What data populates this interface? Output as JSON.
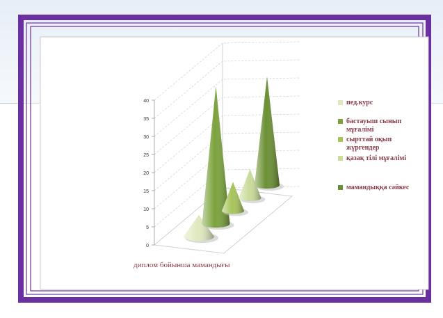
{
  "chart_data": {
    "type": "bar",
    "style": "3d-cone",
    "xlabel": "диплом бойынша мамандығы",
    "ylabel": "",
    "ylim": [
      0,
      40
    ],
    "yticks": [
      0,
      5,
      10,
      15,
      20,
      25,
      30,
      35,
      40
    ],
    "grid": true,
    "legend_position": "right",
    "series": [
      {
        "name": "пед.курс",
        "values": [
          6
        ],
        "color": "#dfe9bf"
      },
      {
        "name": "бастауыш сынып мұғалімі",
        "values": [
          38
        ],
        "color": "#7ba23d"
      },
      {
        "name": "сырттай оқып жүргендер",
        "values": [
          8
        ],
        "color": "#a7c45a"
      },
      {
        "name": "қазақ тілі мұғалімі",
        "values": [
          8
        ],
        "color": "#c9dc9a"
      },
      {
        "name": "мамандыққа сәйкес",
        "values": [
          30
        ],
        "color": "#6b8f33"
      }
    ]
  }
}
